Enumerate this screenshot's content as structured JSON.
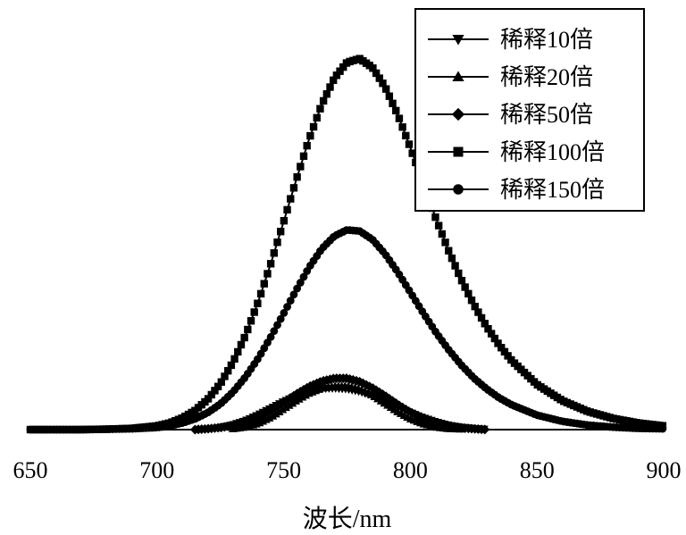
{
  "chart_data": {
    "type": "line",
    "title": "",
    "xlabel": "波长/nm",
    "ylabel": "",
    "xlim": [
      650,
      900
    ],
    "ylim": [
      0,
      1.0
    ],
    "xticks": [
      "650",
      "700",
      "750",
      "800",
      "850",
      "900"
    ],
    "grid": false,
    "legend_position": "top-right",
    "series": [
      {
        "name": "稀释10倍",
        "marker": "triangle-down",
        "x": [
          725,
          730,
          735,
          740,
          745,
          750,
          755,
          760,
          765,
          770,
          775,
          780,
          785,
          790,
          795,
          800,
          805,
          810,
          815,
          820,
          825,
          830
        ],
        "values": [
          0.005,
          0.012,
          0.022,
          0.036,
          0.052,
          0.068,
          0.082,
          0.093,
          0.099,
          0.1,
          0.098,
          0.092,
          0.082,
          0.069,
          0.055,
          0.041,
          0.029,
          0.019,
          0.011,
          0.006,
          0.003,
          0.001
        ]
      },
      {
        "name": "稀释20倍",
        "marker": "triangle-up",
        "x": [
          730,
          735,
          740,
          745,
          750,
          755,
          760,
          765,
          770,
          775,
          780,
          785,
          790,
          795,
          800,
          805,
          810,
          815,
          820
        ],
        "values": [
          0.002,
          0.006,
          0.015,
          0.03,
          0.05,
          0.07,
          0.088,
          0.1,
          0.105,
          0.105,
          0.098,
          0.083,
          0.063,
          0.043,
          0.026,
          0.014,
          0.006,
          0.002,
          0.001
        ]
      },
      {
        "name": "稀释50倍",
        "marker": "diamond",
        "x": [
          715,
          720,
          725,
          730,
          735,
          740,
          745,
          750,
          755,
          760,
          765,
          770,
          775,
          780,
          785,
          790,
          795,
          800,
          805,
          810,
          815,
          820,
          825,
          830
        ],
        "values": [
          0.0,
          0.002,
          0.005,
          0.01,
          0.018,
          0.03,
          0.046,
          0.066,
          0.086,
          0.104,
          0.117,
          0.124,
          0.124,
          0.116,
          0.101,
          0.082,
          0.061,
          0.042,
          0.027,
          0.016,
          0.008,
          0.004,
          0.002,
          0.0
        ]
      },
      {
        "name": "稀释100倍",
        "marker": "square",
        "x": [
          650,
          660,
          670,
          680,
          690,
          700,
          705,
          710,
          715,
          720,
          725,
          730,
          735,
          740,
          745,
          750,
          755,
          760,
          765,
          770,
          775,
          780,
          785,
          790,
          795,
          800,
          805,
          810,
          815,
          820,
          825,
          830,
          835,
          840,
          850,
          860,
          870,
          880,
          890,
          900
        ],
        "values": [
          0.0,
          0.0,
          0.0,
          0.001,
          0.003,
          0.009,
          0.016,
          0.028,
          0.046,
          0.073,
          0.111,
          0.163,
          0.229,
          0.31,
          0.403,
          0.503,
          0.605,
          0.702,
          0.786,
          0.85,
          0.888,
          0.897,
          0.876,
          0.829,
          0.762,
          0.682,
          0.596,
          0.512,
          0.434,
          0.364,
          0.303,
          0.25,
          0.205,
          0.167,
          0.109,
          0.07,
          0.044,
          0.027,
          0.016,
          0.009
        ]
      },
      {
        "name": "稀释150倍",
        "marker": "circle",
        "x": [
          650,
          660,
          670,
          680,
          690,
          700,
          705,
          710,
          715,
          720,
          725,
          730,
          735,
          740,
          745,
          750,
          755,
          760,
          765,
          770,
          775,
          780,
          785,
          790,
          795,
          800,
          805,
          810,
          815,
          820,
          825,
          830,
          835,
          840,
          850,
          860,
          870,
          880,
          890,
          900
        ],
        "values": [
          0.0,
          0.0,
          0.0,
          0.001,
          0.002,
          0.005,
          0.009,
          0.016,
          0.026,
          0.041,
          0.062,
          0.091,
          0.128,
          0.173,
          0.225,
          0.281,
          0.338,
          0.392,
          0.437,
          0.468,
          0.483,
          0.48,
          0.46,
          0.425,
          0.381,
          0.332,
          0.283,
          0.236,
          0.194,
          0.157,
          0.125,
          0.099,
          0.077,
          0.06,
          0.035,
          0.02,
          0.011,
          0.006,
          0.003,
          0.002
        ]
      }
    ]
  }
}
